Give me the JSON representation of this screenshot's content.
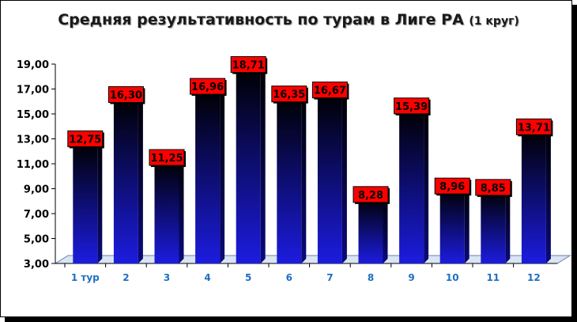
{
  "chart_data": {
    "type": "bar",
    "title": "Средняя результативность по турам в Лиге РА",
    "subtitle": "(1 круг)",
    "categories": [
      "1 тур",
      "2",
      "3",
      "4",
      "5",
      "6",
      "7",
      "8",
      "9",
      "10",
      "11",
      "12"
    ],
    "values": [
      12.75,
      16.3,
      11.25,
      16.96,
      18.71,
      16.35,
      16.67,
      8.28,
      15.39,
      8.96,
      8.85,
      13.71
    ],
    "value_labels": [
      "12,75",
      "16,30",
      "11,25",
      "16,96",
      "18,71",
      "16,35",
      "16,67",
      "8,28",
      "15,39",
      "8,96",
      "8,85",
      "13,71"
    ],
    "y_ticks": [
      "3,00",
      "5,00",
      "7,00",
      "9,00",
      "11,00",
      "13,00",
      "15,00",
      "17,00",
      "19,00"
    ],
    "y_tick_values": [
      3,
      5,
      7,
      9,
      11,
      13,
      15,
      17,
      19
    ],
    "ylim": [
      3,
      19
    ],
    "xlabel": "",
    "ylabel": "",
    "grid": false,
    "legend": "none",
    "colors": {
      "bar_top": "#000000",
      "bar_bottom": "#1c1ce0",
      "label_bg": "#ff0000",
      "x_tick": "#1f6fc0"
    }
  }
}
